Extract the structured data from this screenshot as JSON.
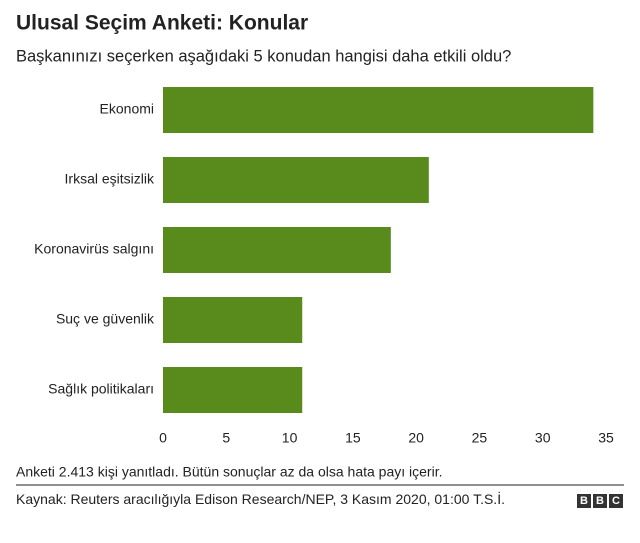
{
  "chart_data": {
    "type": "hbar",
    "title": "Ulusal Seçim Anketi: Konular",
    "subtitle": "Başkanınızı seçerken aşağıdaki 5 konudan hangisi daha etkili oldu?",
    "categories": [
      "Ekonomi",
      "Irksal eşitsizlik",
      "Koronavirüs salgını",
      "Suç ve güvenlik",
      "Sağlık politikaları"
    ],
    "values": [
      34,
      21,
      18,
      11,
      11
    ],
    "color": "#588a1c",
    "xlim": [
      0,
      35
    ],
    "xticks": [
      0,
      5,
      10,
      15,
      20,
      25,
      30,
      35
    ],
    "grid": false,
    "note": "Anketi 2.413 kişi yanıtladı. Bütün sonuçlar az da olsa hata payı içerir.",
    "source": "Kaynak: Reuters aracılığıyla Edison Research/NEP, 3 Kasım 2020, 01:00 T.S.İ.",
    "logo": [
      "B",
      "B",
      "C"
    ]
  }
}
